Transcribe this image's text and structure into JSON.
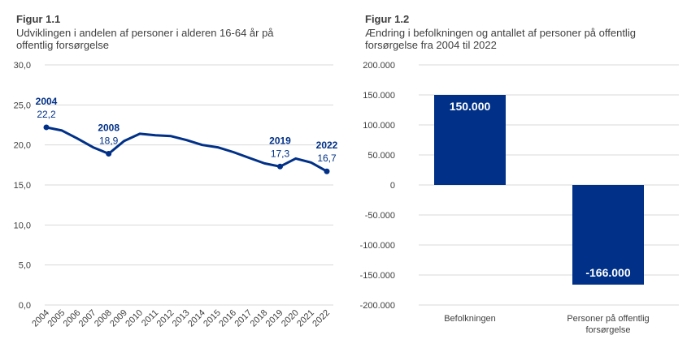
{
  "figures": [
    {
      "label": "Figur 1.1",
      "subtitle": "Udviklingen i andelen af personer i alderen 16-64 år på offentlig forsørgelse"
    },
    {
      "label": "Figur 1.2",
      "subtitle": "Ændring i befolkningen og antallet af personer på offentlig forsørgelse fra 2004 til 2022"
    }
  ],
  "colors": {
    "series": "#003087",
    "grid": "#d9d9d9",
    "text": "#404040"
  },
  "chart_data": [
    {
      "type": "line",
      "title": "Udviklingen i andelen af personer i alderen 16-64 år på offentlig forsørgelse",
      "x": [
        "2004",
        "2005",
        "2006",
        "2007",
        "2008",
        "2009",
        "2010",
        "2011",
        "2012",
        "2013",
        "2014",
        "2015",
        "2016",
        "2017",
        "2018",
        "2019",
        "2020",
        "2021",
        "2022"
      ],
      "series": [
        {
          "values": [
            22.2,
            21.8,
            20.8,
            19.7,
            18.9,
            20.5,
            21.4,
            21.2,
            21.1,
            20.6,
            20.0,
            19.7,
            19.1,
            18.4,
            17.7,
            17.3,
            18.3,
            17.8,
            16.7
          ]
        }
      ],
      "ylim": [
        0,
        30
      ],
      "yticks": [
        "0,0",
        "5,0",
        "10,0",
        "15,0",
        "20,0",
        "25,0",
        "30,0"
      ],
      "grid": true,
      "annotations": [
        {
          "year": "2004",
          "value": "22,2"
        },
        {
          "year": "2008",
          "value": "18,9"
        },
        {
          "year": "2019",
          "value": "17,3"
        },
        {
          "year": "2022",
          "value": "16,7"
        }
      ]
    },
    {
      "type": "bar",
      "title": "Ændring i befolkningen og antallet af personer på offentlig forsørgelse fra 2004 til 2022",
      "categories": [
        "Befolkningen",
        "Personer på offentlig forsørgelse"
      ],
      "category_lines": [
        [
          "Befolkningen"
        ],
        [
          "Personer på offentlig",
          "forsørgelse"
        ]
      ],
      "values": [
        150000,
        -166000
      ],
      "value_labels": [
        "150.000",
        "-166.000"
      ],
      "ylim": [
        -200000,
        200000
      ],
      "yticks": [
        "-200.000",
        "-150.000",
        "-100.000",
        "-50.000",
        "0",
        "50.000",
        "100.000",
        "150.000",
        "200.000"
      ],
      "grid": true
    }
  ]
}
